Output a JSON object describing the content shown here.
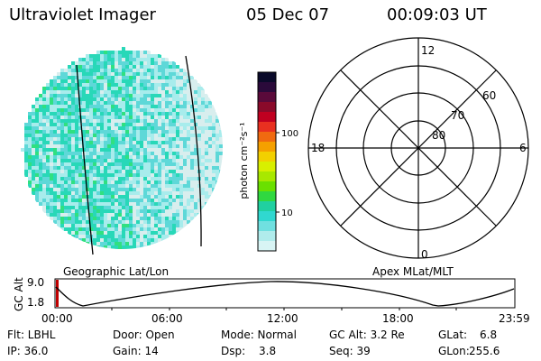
{
  "header": {
    "instrument": "Ultraviolet Imager",
    "date": "05 Dec 07",
    "time": "00:09:03 UT"
  },
  "colorbar": {
    "unit_label": "photon cm⁻²s⁻¹",
    "tick_100": "100",
    "tick_10": "10",
    "colors": [
      "#0a0a2a",
      "#2a0a3a",
      "#5a0a3a",
      "#8a0a2a",
      "#c00020",
      "#e83020",
      "#f06a10",
      "#f5a000",
      "#f2d000",
      "#d8ef00",
      "#a8e800",
      "#6ae000",
      "#30d840",
      "#20d0a0",
      "#30d8d0",
      "#70e0e0",
      "#b0ecec",
      "#d8f4f4"
    ]
  },
  "geographic_map": {
    "caption": "Geographic Lat/Lon",
    "colors": {
      "dense": "#28d8b8",
      "medium": "#5ed8d8",
      "light": "#a8ecec",
      "pale": "#d8eeee",
      "green": "#30e080"
    }
  },
  "polar_grid": {
    "caption": "Apex MLat/MLT",
    "mlt_labels": {
      "top": "12",
      "right": "6",
      "bottom": "0",
      "left": "18"
    },
    "lat_labels": [
      "80",
      "70",
      "60"
    ]
  },
  "altitude_plot": {
    "ylabel": "GC Alt",
    "y_ticks": [
      "9.0",
      "1.8"
    ],
    "x_ticks": [
      "00:00",
      "06:00",
      "12:00",
      "18:00",
      "23:59"
    ],
    "marker_color": "#c00000"
  },
  "info": {
    "row1": {
      "flt": "Flt: LBHL",
      "door": "Door: Open",
      "mode": "Mode: Normal",
      "gcalt": "GC Alt: 3.2 Re",
      "glat_label": "GLat:",
      "glat_value": "6.8"
    },
    "row2": {
      "ip": "IP: 36.0",
      "gain": "Gain: 14",
      "dsp_label": "Dsp:",
      "dsp_value": "3.8",
      "seq": "Seq: 39",
      "glon_label": "GLon:",
      "glon_value": "255.6"
    }
  }
}
